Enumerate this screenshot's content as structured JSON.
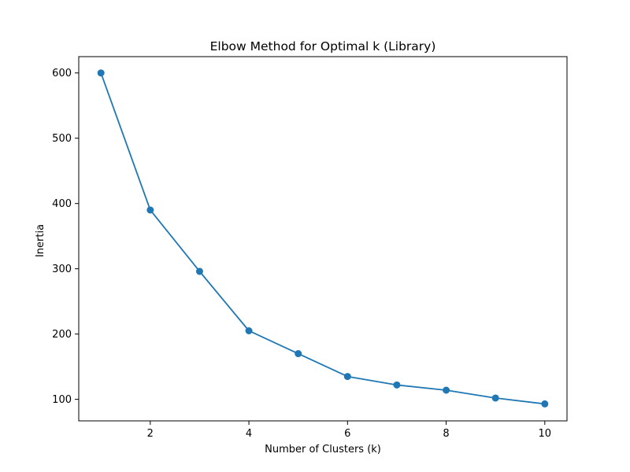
{
  "chart_data": {
    "type": "line",
    "title": "Elbow Method for Optimal k (Library)",
    "xlabel": "Number of Clusters (k)",
    "ylabel": "Inertia",
    "x": [
      1,
      2,
      3,
      4,
      5,
      6,
      7,
      8,
      9,
      10
    ],
    "series": [
      {
        "values": [
          600,
          390,
          296,
          205,
          170,
          135,
          122,
          114,
          102,
          93
        ]
      }
    ],
    "xlim": [
      0.55,
      10.45
    ],
    "ylim": [
      67,
      625
    ],
    "xticks": [
      2,
      4,
      6,
      8,
      10
    ],
    "yticks": [
      100,
      200,
      300,
      400,
      500,
      600
    ],
    "grid": false,
    "line_color": "#1f77b4",
    "marker": "circle"
  }
}
